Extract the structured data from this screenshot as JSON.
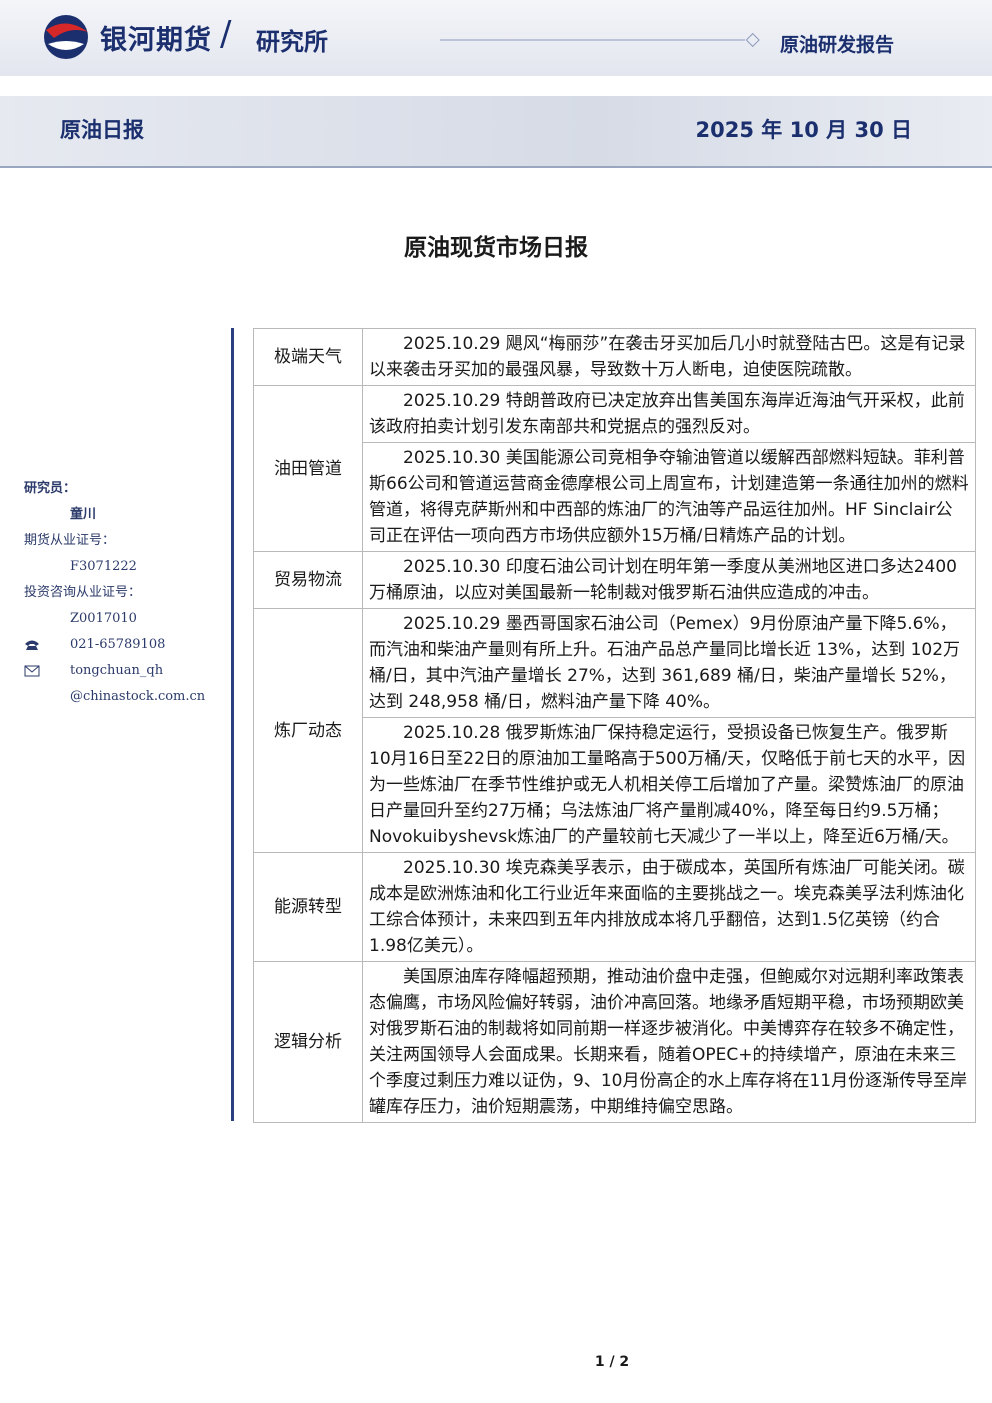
{
  "header": {
    "company": "银河期货",
    "department": "研究所",
    "report_type": "原油研发报告",
    "report_name": "原油日报",
    "date": "2025 年 10 月 30 日"
  },
  "title": "原油现货市场日报",
  "researcher": {
    "label": "研究员：",
    "name": "童川",
    "futures_license_label": "期货从业证号：",
    "futures_license": "F3071222",
    "consult_license_label": "投资咨询从业证号：",
    "consult_license": "Z0017010",
    "phone": "021-65789108",
    "email_1": "tongchuan_qh",
    "email_2": "@chinastock.com.cn"
  },
  "table": {
    "rows": [
      {
        "category": "极端天气",
        "items": [
          "2025.10.29 飓风“梅丽莎”在袭击牙买加后几小时就登陆古巴。这是有记录以来袭击牙买加的最强风暴，导致数十万人断电，迫使医院疏散。"
        ]
      },
      {
        "category": "油田管道",
        "items": [
          "2025.10.29 特朗普政府已决定放弃出售美国东海岸近海油气开采权，此前该政府拍卖计划引发东南部共和党据点的强烈反对。",
          "2025.10.30 美国能源公司竞相争夺输油管道以缓解西部燃料短缺。菲利普斯66公司和管道运营商金德摩根公司上周宣布，计划建造第一条通往加州的燃料管道，将得克萨斯州和中西部的炼油厂的汽油等产品运往加州。HF Sinclair公司正在评估一项向西方市场供应额外15万桶/日精炼产品的计划。"
        ]
      },
      {
        "category": "贸易物流",
        "items": [
          "2025.10.30 印度石油公司计划在明年第一季度从美洲地区进口多达2400万桶原油，以应对美国最新一轮制裁对俄罗斯石油供应造成的冲击。"
        ]
      },
      {
        "category": "炼厂动态",
        "items": [
          "2025.10.29 墨西哥国家石油公司（Pemex）9月份原油产量下降5.6%，而汽油和柴油产量则有所上升。石油产品总产量同比增长近 13%，达到 102万桶/日，其中汽油产量增长 27%，达到 361,689 桶/日，柴油产量增长 52%，达到 248,958 桶/日，燃料油产量下降 40%。",
          "2025.10.28 俄罗斯炼油厂保持稳定运行，受损设备已恢复生产。俄罗斯10月16日至22日的原油加工量略高于500万桶/天，仅略低于前七天的水平，因为一些炼油厂在季节性维护或无人机相关停工后增加了产量。梁赞炼油厂的原油日产量回升至约27万桶；乌法炼油厂将产量削减40%，降至每日约9.5万桶；Novokuibyshevsk炼油厂的产量较前七天减少了一半以上，降至近6万桶/天。"
        ]
      },
      {
        "category": "能源转型",
        "items": [
          "2025.10.30 埃克森美孚表示，由于碳成本，英国所有炼油厂可能关闭。碳成本是欧洲炼油和化工行业近年来面临的主要挑战之一。埃克森美孚法利炼油化工综合体预计，未来四到五年内排放成本将几乎翻倍，达到1.5亿英镑（约合1.98亿美元）。"
        ]
      },
      {
        "category": "逻辑分析",
        "items": [
          "美国原油库存降幅超预期，推动油价盘中走强，但鲍威尔对远期利率政策表态偏鹰，市场风险偏好转弱，油价冲高回落。地缘矛盾短期平稳，市场预期欧美对俄罗斯石油的制裁将如同前期一样逐步被消化。中美博弈存在较多不确定性，关注两国领导人会面成果。长期来看，随着OPEC+的持续增产，原油在未来三个季度过剩压力难以证伪，9、10月份高企的水上库存将在11月份逐渐传导至岸罐库存压力，油价短期震荡，中期维持偏空思路。"
        ]
      }
    ]
  },
  "footer": {
    "page": "1 / 2"
  }
}
